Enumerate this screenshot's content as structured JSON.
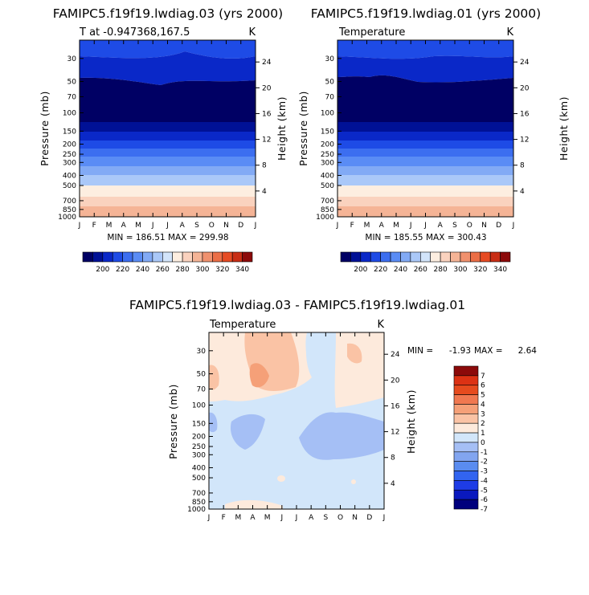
{
  "chart_data": [
    {
      "type": "contour",
      "title": "FAMIPC5.f19f19.lwdiag.03 (yrs 2000)",
      "subtitle_left": "T at -0.947368,167.5",
      "subtitle_right": "K",
      "xlabel": "",
      "ylabel": "Pressure (mb)",
      "ylabel_right": "Height (km)",
      "x_ticks": [
        "J",
        "F",
        "M",
        "A",
        "M",
        "J",
        "J",
        "A",
        "S",
        "O",
        "N",
        "D",
        "J"
      ],
      "y_ticks": [
        30,
        50,
        70,
        100,
        150,
        200,
        250,
        300,
        400,
        500,
        700,
        850,
        1000
      ],
      "y_ticks_right": [
        24,
        20,
        16,
        12,
        8,
        4
      ],
      "y_scale": "log",
      "ylim": [
        1000,
        20
      ],
      "stats": "MIN = 186.51  MAX = 299.98",
      "colorbar": {
        "orientation": "horizontal",
        "labels": [
          200,
          220,
          240,
          260,
          280,
          300,
          320,
          340
        ]
      }
    },
    {
      "type": "contour",
      "title": "FAMIPC5.f19f19.lwdiag.01 (yrs 2000)",
      "subtitle_left": "Temperature",
      "subtitle_right": "K",
      "xlabel": "",
      "ylabel": "Pressure (mb)",
      "ylabel_right": "Height (km)",
      "x_ticks": [
        "J",
        "F",
        "M",
        "A",
        "M",
        "J",
        "J",
        "A",
        "S",
        "O",
        "N",
        "D",
        "J"
      ],
      "y_ticks": [
        30,
        50,
        70,
        100,
        150,
        200,
        250,
        300,
        400,
        500,
        700,
        850,
        1000
      ],
      "y_ticks_right": [
        24,
        20,
        16,
        12,
        8,
        4
      ],
      "y_scale": "log",
      "ylim": [
        1000,
        20
      ],
      "stats": "MIN = 185.55  MAX = 300.43",
      "colorbar": {
        "orientation": "horizontal",
        "labels": [
          200,
          220,
          240,
          260,
          280,
          300,
          320,
          340
        ]
      }
    },
    {
      "type": "contour",
      "title": "FAMIPC5.f19f19.lwdiag.03 - FAMIPC5.f19f19.lwdiag.01",
      "subtitle_left": "Temperature",
      "subtitle_right": "K",
      "xlabel": "",
      "ylabel": "Pressure (mb)",
      "ylabel_right": "Height (km)",
      "x_ticks": [
        "J",
        "F",
        "M",
        "A",
        "M",
        "J",
        "J",
        "A",
        "S",
        "O",
        "N",
        "D",
        "J"
      ],
      "y_ticks": [
        30,
        50,
        70,
        100,
        150,
        200,
        250,
        300,
        400,
        500,
        700,
        850,
        1000
      ],
      "y_ticks_right": [
        24,
        20,
        16,
        12,
        8,
        4
      ],
      "y_scale": "log",
      "ylim": [
        1000,
        20
      ],
      "stats_min_label": "MIN =",
      "stats_min": "-1.93",
      "stats_max_label": "MAX =",
      "stats_max": "2.64",
      "colorbar": {
        "orientation": "vertical",
        "labels": [
          7,
          6,
          5,
          4,
          3,
          2,
          1,
          0,
          -1,
          -2,
          -3,
          -4,
          -5,
          -6,
          -7
        ]
      }
    }
  ],
  "colors": {
    "abs_scale": [
      "#000064",
      "#001196",
      "#0a28c8",
      "#1e4be6",
      "#3c6ef0",
      "#5a8cf5",
      "#82aaf5",
      "#aac8f8",
      "#d2e4fa",
      "#fdeee0",
      "#fad2be",
      "#f5b496",
      "#f0916e",
      "#eb6e46",
      "#e64b23",
      "#c82d14",
      "#8c0a0a"
    ],
    "diff_scale": [
      "#00007d",
      "#0a19be",
      "#1e3ce6",
      "#3264f0",
      "#5a8cf0",
      "#82a5f0",
      "#a5bff5",
      "#d2e6fa",
      "#fdeadc",
      "#fac3a5",
      "#f5a078",
      "#f07850",
      "#e64b1e",
      "#dc3214",
      "#8c0a0a"
    ]
  }
}
